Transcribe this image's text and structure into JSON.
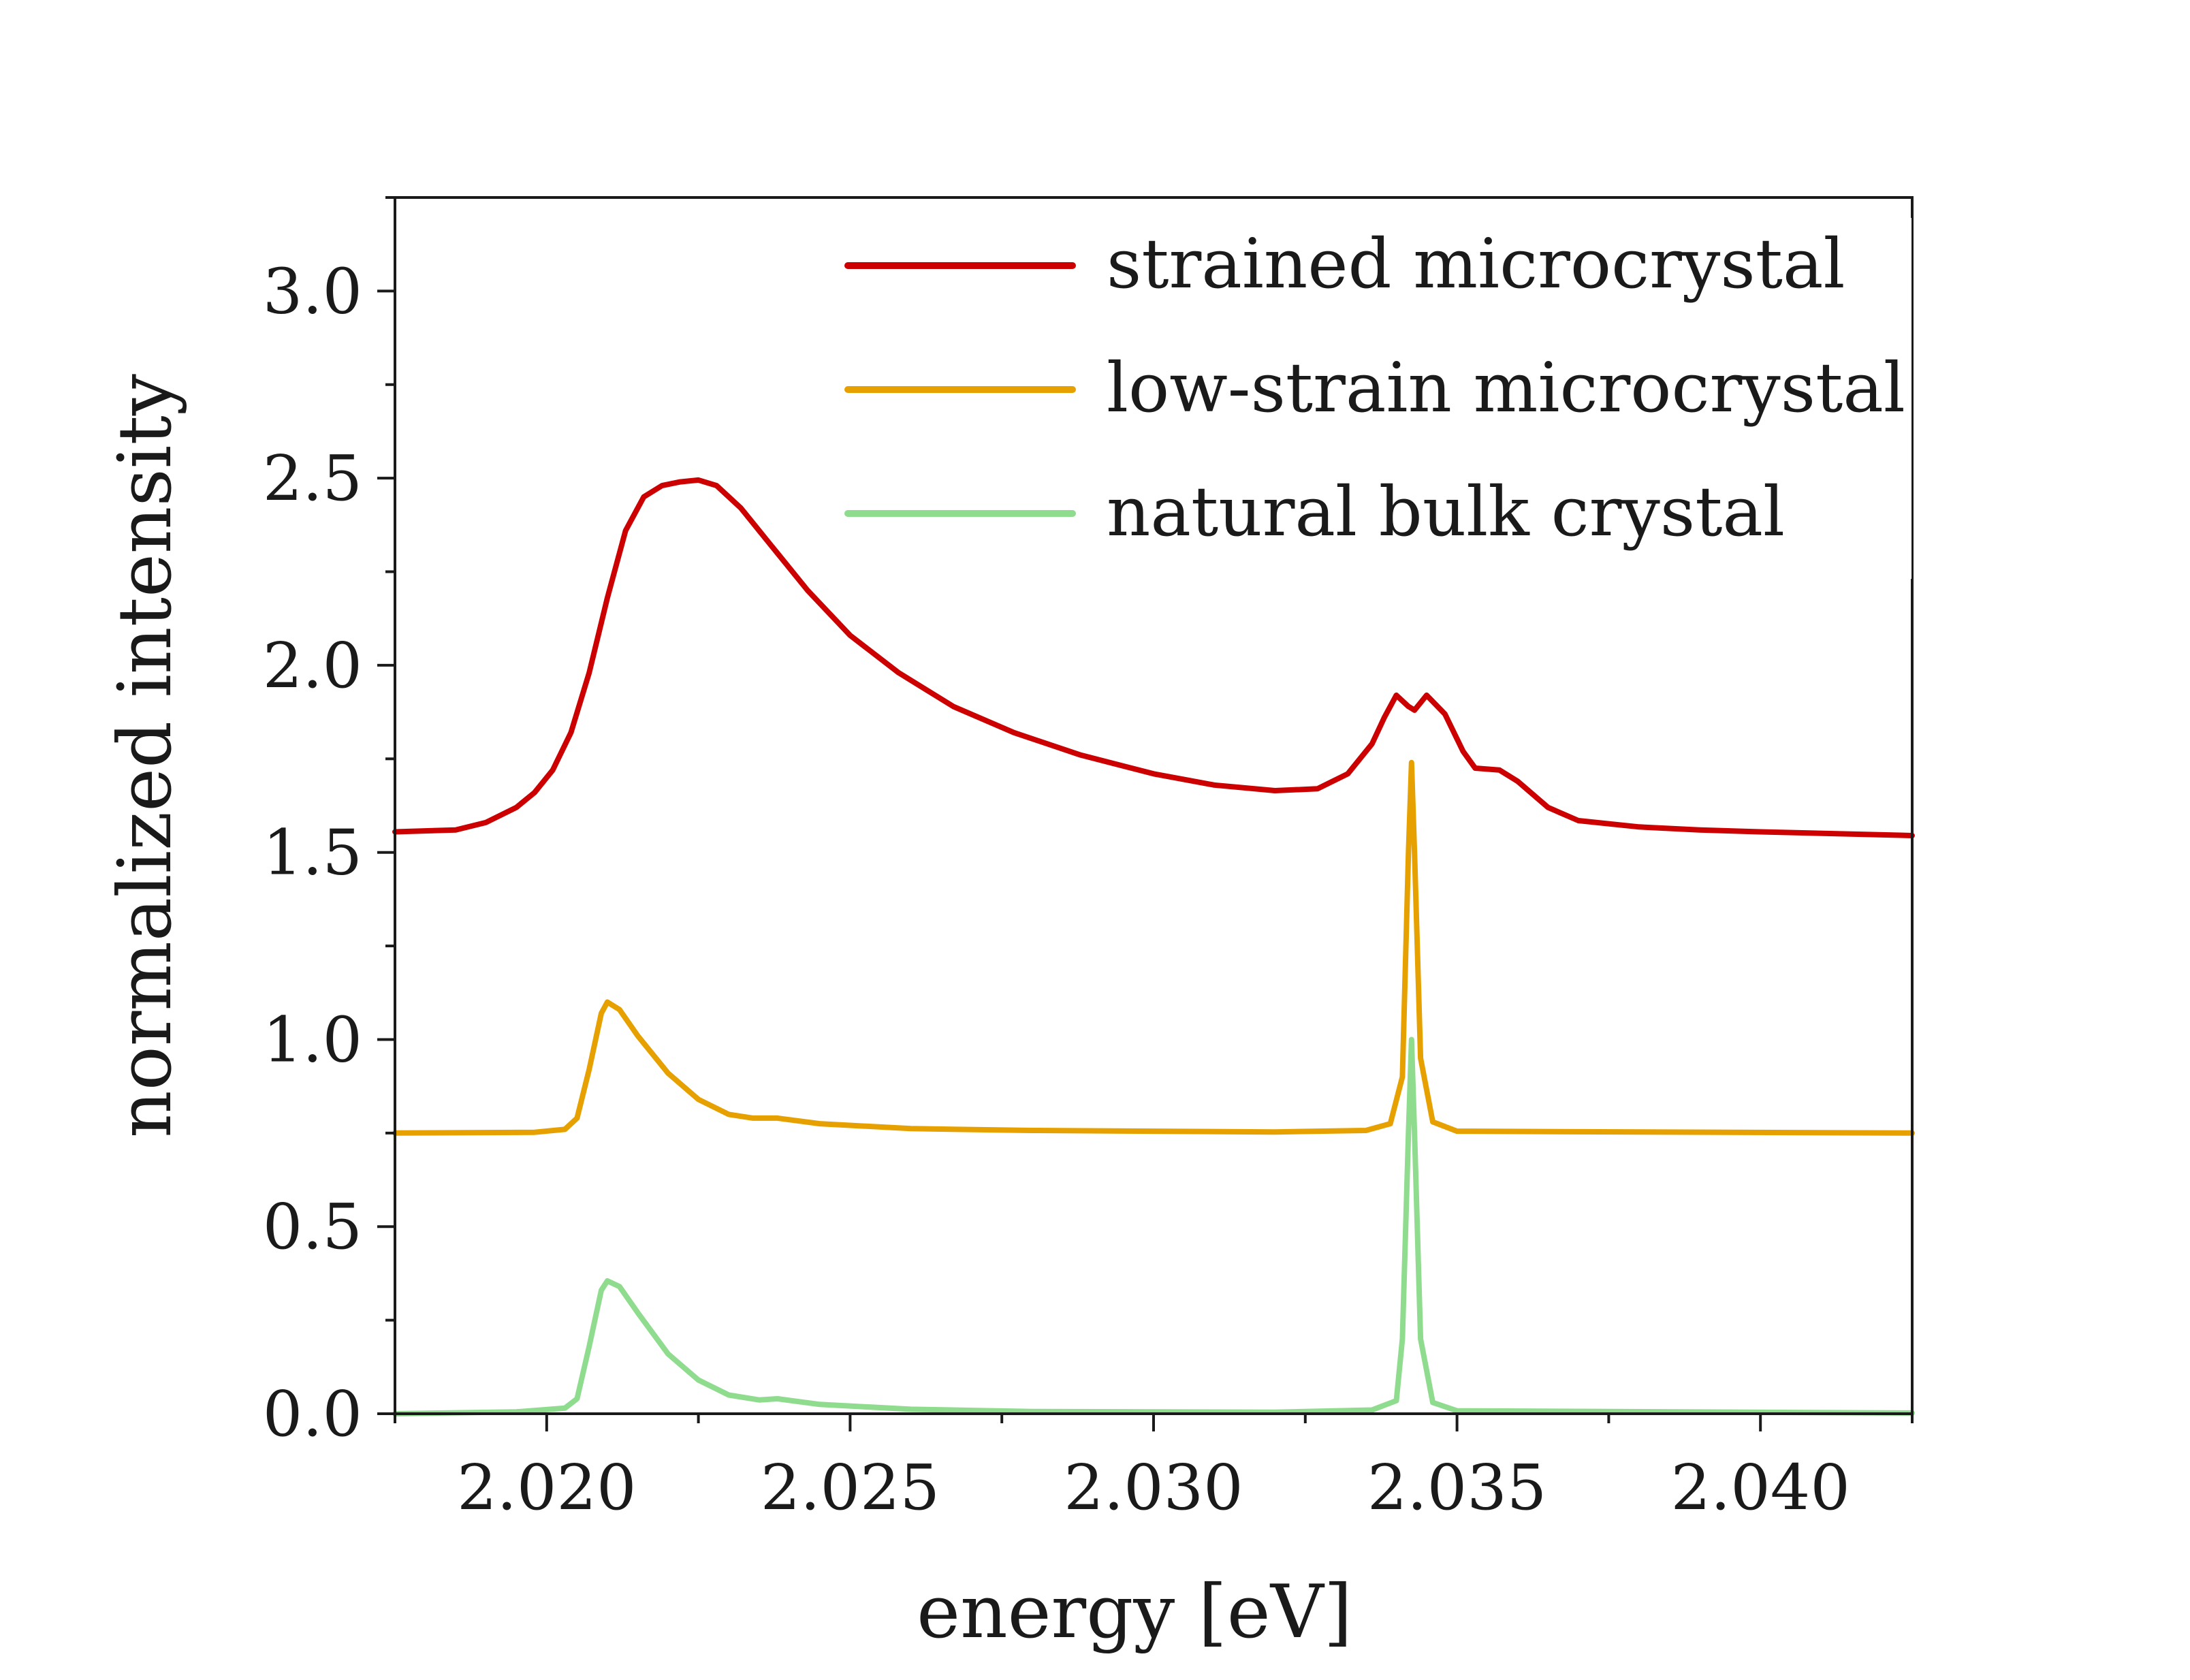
{
  "chart_data": {
    "type": "line",
    "title": "",
    "xlabel": "energy [eV]",
    "ylabel": "normalized intensity",
    "xlim": [
      2.0175,
      2.0425
    ],
    "ylim": [
      0.0,
      3.25
    ],
    "x_ticks": [
      2.02,
      2.025,
      2.03,
      2.035,
      2.04
    ],
    "x_tick_labels": [
      "2.020",
      "2.025",
      "2.030",
      "2.035",
      "2.040"
    ],
    "y_ticks": [
      0.0,
      0.5,
      1.0,
      1.5,
      2.0,
      2.5,
      3.0
    ],
    "y_tick_labels": [
      "0.0",
      "0.5",
      "1.0",
      "1.5",
      "2.0",
      "2.5",
      "3.0"
    ],
    "x_minor_step": 0.0025,
    "y_minor_step": 0.25,
    "grid": false,
    "legend_position": "top-right",
    "series": [
      {
        "name": "strained microcrystal",
        "color": "#cc0000",
        "points": [
          [
            2.0175,
            1.555
          ],
          [
            2.0185,
            1.56
          ],
          [
            2.019,
            1.58
          ],
          [
            2.0195,
            1.62
          ],
          [
            2.0198,
            1.66
          ],
          [
            2.0201,
            1.72
          ],
          [
            2.0204,
            1.82
          ],
          [
            2.0207,
            1.98
          ],
          [
            2.021,
            2.18
          ],
          [
            2.0213,
            2.36
          ],
          [
            2.0216,
            2.45
          ],
          [
            2.0219,
            2.48
          ],
          [
            2.0222,
            2.49
          ],
          [
            2.0225,
            2.495
          ],
          [
            2.0228,
            2.48
          ],
          [
            2.0232,
            2.42
          ],
          [
            2.0237,
            2.32
          ],
          [
            2.0243,
            2.2
          ],
          [
            2.025,
            2.08
          ],
          [
            2.0258,
            1.98
          ],
          [
            2.0267,
            1.89
          ],
          [
            2.0277,
            1.82
          ],
          [
            2.0288,
            1.76
          ],
          [
            2.03,
            1.71
          ],
          [
            2.031,
            1.68
          ],
          [
            2.032,
            1.665
          ],
          [
            2.0327,
            1.67
          ],
          [
            2.0332,
            1.71
          ],
          [
            2.0336,
            1.79
          ],
          [
            2.0338,
            1.86
          ],
          [
            2.034,
            1.92
          ],
          [
            2.0342,
            1.89
          ],
          [
            2.0343,
            1.88
          ],
          [
            2.0345,
            1.92
          ],
          [
            2.0348,
            1.87
          ],
          [
            2.0351,
            1.77
          ],
          [
            2.0353,
            1.725
          ],
          [
            2.0357,
            1.72
          ],
          [
            2.036,
            1.69
          ],
          [
            2.0365,
            1.62
          ],
          [
            2.037,
            1.585
          ],
          [
            2.038,
            1.568
          ],
          [
            2.039,
            1.56
          ],
          [
            2.04,
            1.555
          ],
          [
            2.0425,
            1.545
          ]
        ]
      },
      {
        "name": "low-strain microcrystal",
        "color": "#e6a000",
        "points": [
          [
            2.0175,
            0.75
          ],
          [
            2.0198,
            0.752
          ],
          [
            2.0203,
            0.76
          ],
          [
            2.0205,
            0.79
          ],
          [
            2.0207,
            0.92
          ],
          [
            2.0209,
            1.07
          ],
          [
            2.021,
            1.1
          ],
          [
            2.0212,
            1.08
          ],
          [
            2.0215,
            1.01
          ],
          [
            2.022,
            0.91
          ],
          [
            2.0225,
            0.84
          ],
          [
            2.023,
            0.8
          ],
          [
            2.0234,
            0.79
          ],
          [
            2.0238,
            0.79
          ],
          [
            2.0245,
            0.775
          ],
          [
            2.026,
            0.762
          ],
          [
            2.028,
            0.757
          ],
          [
            2.032,
            0.753
          ],
          [
            2.0335,
            0.757
          ],
          [
            2.0339,
            0.775
          ],
          [
            2.0341,
            0.9
          ],
          [
            2.0342,
            1.5
          ],
          [
            2.03425,
            1.74
          ],
          [
            2.0343,
            1.5
          ],
          [
            2.0344,
            0.95
          ],
          [
            2.0346,
            0.78
          ],
          [
            2.035,
            0.755
          ],
          [
            2.0425,
            0.75
          ]
        ]
      },
      {
        "name": "natural bulk crystal",
        "color": "#8fdc8f",
        "points": [
          [
            2.0175,
            0.0
          ],
          [
            2.0195,
            0.005
          ],
          [
            2.0203,
            0.015
          ],
          [
            2.0205,
            0.04
          ],
          [
            2.0207,
            0.18
          ],
          [
            2.0209,
            0.33
          ],
          [
            2.021,
            0.355
          ],
          [
            2.0212,
            0.34
          ],
          [
            2.0215,
            0.27
          ],
          [
            2.022,
            0.16
          ],
          [
            2.0225,
            0.09
          ],
          [
            2.023,
            0.05
          ],
          [
            2.0235,
            0.037
          ],
          [
            2.0238,
            0.04
          ],
          [
            2.0245,
            0.025
          ],
          [
            2.026,
            0.012
          ],
          [
            2.028,
            0.006
          ],
          [
            2.032,
            0.004
          ],
          [
            2.0336,
            0.01
          ],
          [
            2.034,
            0.035
          ],
          [
            2.0341,
            0.2
          ],
          [
            2.0342,
            0.75
          ],
          [
            2.03425,
            1.0
          ],
          [
            2.0343,
            0.75
          ],
          [
            2.0344,
            0.2
          ],
          [
            2.0346,
            0.03
          ],
          [
            2.035,
            0.008
          ],
          [
            2.0425,
            0.002
          ]
        ]
      }
    ]
  }
}
